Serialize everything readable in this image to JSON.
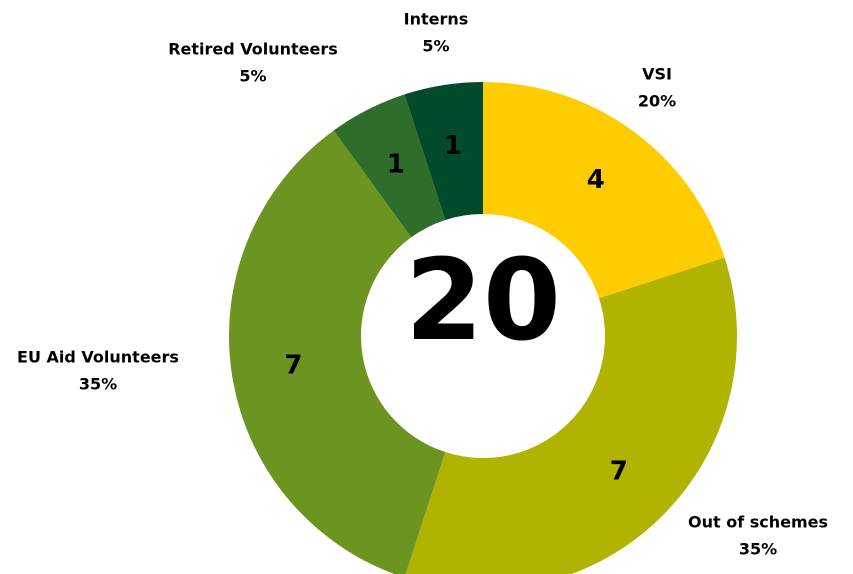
{
  "chart_data": {
    "type": "donut",
    "categories": [
      "VSI",
      "Out of schemes",
      "EU Aid Volunteers",
      "Retired Volunteers",
      "Interns"
    ],
    "values": [
      4,
      7,
      7,
      1,
      1
    ],
    "percent_labels": [
      "20%",
      "35%",
      "35%",
      "5%",
      "5%"
    ],
    "colors": [
      "#ffcc00",
      "#b0b400",
      "#6b9420",
      "#2f6e2a",
      "#024a2c"
    ],
    "total": 20
  }
}
